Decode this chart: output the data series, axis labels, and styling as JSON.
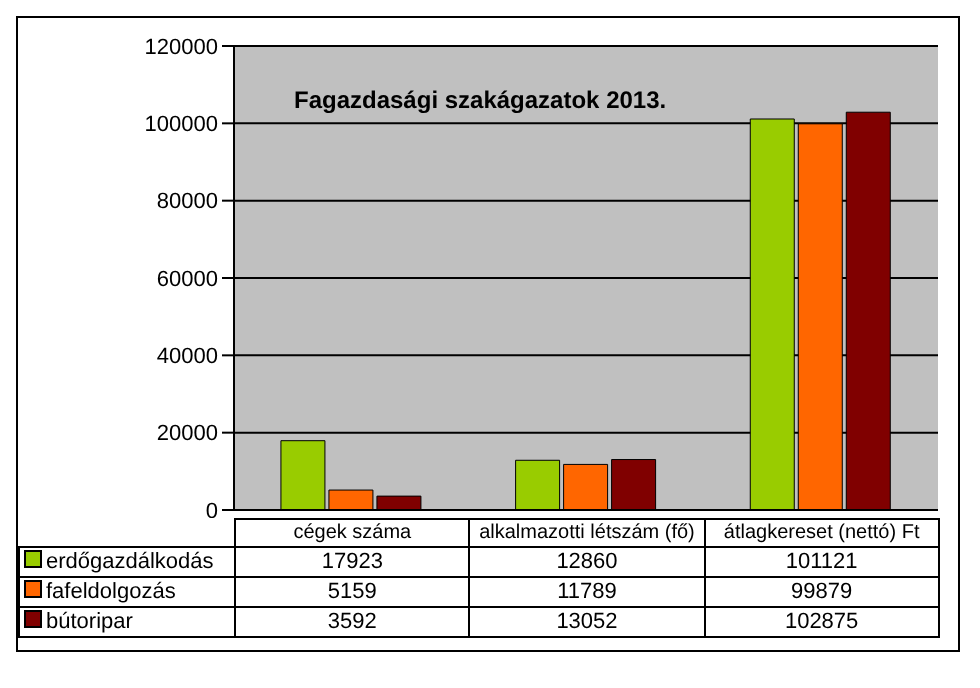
{
  "chart_data": {
    "type": "bar",
    "title": "Fagazdasági szakágazatok 2013.",
    "categories": [
      "cégek száma",
      "alkalmazotti létszám (fő)",
      "átlagkereset (nettó) Ft"
    ],
    "series": [
      {
        "name": "erdőgazdálkodás",
        "color": "#99cc00",
        "values": [
          17923,
          12860,
          101121
        ]
      },
      {
        "name": "fafeldolgozás",
        "color": "#ff6600",
        "values": [
          5159,
          11789,
          99879
        ]
      },
      {
        "name": "bútoripar",
        "color": "#800000",
        "values": [
          3592,
          13052,
          102875
        ]
      }
    ],
    "ylim": [
      0,
      120000
    ],
    "yticks": [
      0,
      20000,
      40000,
      60000,
      80000,
      100000,
      120000
    ],
    "grid": "y",
    "legend": "bottom",
    "data_labels": true
  }
}
